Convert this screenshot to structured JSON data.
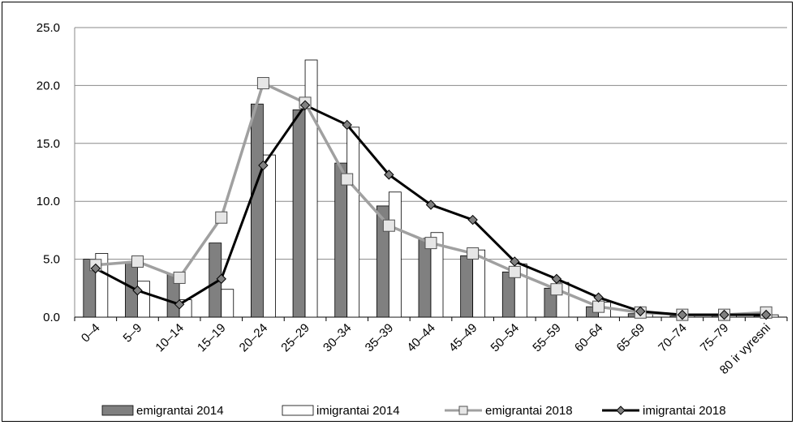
{
  "chart_data": {
    "type": "bar",
    "title": "",
    "xlabel": "",
    "ylabel": "",
    "ylim": [
      0,
      25
    ],
    "yticks": [
      "0.0",
      "5.0",
      "10.0",
      "15.0",
      "20.0",
      "25.0"
    ],
    "grid": true,
    "legend_position": "bottom",
    "categories": [
      "0–4",
      "5–9",
      "10–14",
      "15–19",
      "20–24",
      "25–29",
      "30–34",
      "35–39",
      "40–44",
      "45–49",
      "50–54",
      "55–59",
      "60–64",
      "65–69",
      "70–74",
      "75–79",
      "80 ir vyresni"
    ],
    "series": [
      {
        "name": "emigrantai 2014",
        "kind": "bar",
        "color": "#808080",
        "values": [
          5.0,
          4.7,
          3.7,
          6.4,
          18.4,
          17.9,
          13.3,
          9.6,
          6.8,
          5.3,
          3.9,
          2.5,
          0.9,
          0.3,
          0.1,
          0.1,
          0.1
        ]
      },
      {
        "name": "imigrantai 2014",
        "kind": "bar",
        "color": "#ffffff",
        "values": [
          5.5,
          3.1,
          1.5,
          2.4,
          14.0,
          22.2,
          16.4,
          10.8,
          7.3,
          5.8,
          4.6,
          3.0,
          1.3,
          0.4,
          0.2,
          0.2,
          0.2
        ]
      },
      {
        "name": "emigrantai 2018",
        "kind": "line",
        "color": "#a0a0a0",
        "marker": "square",
        "values": [
          4.5,
          4.8,
          3.4,
          8.6,
          20.2,
          18.5,
          11.9,
          7.9,
          6.4,
          5.5,
          3.9,
          2.4,
          0.9,
          0.4,
          0.2,
          0.2,
          0.4
        ]
      },
      {
        "name": "imigrantai 2018",
        "kind": "line",
        "color": "#000000",
        "marker": "diamond",
        "values": [
          4.2,
          2.3,
          1.1,
          3.3,
          13.1,
          18.3,
          16.6,
          12.3,
          9.7,
          8.4,
          4.8,
          3.3,
          1.7,
          0.5,
          0.2,
          0.2,
          0.2
        ]
      }
    ]
  }
}
